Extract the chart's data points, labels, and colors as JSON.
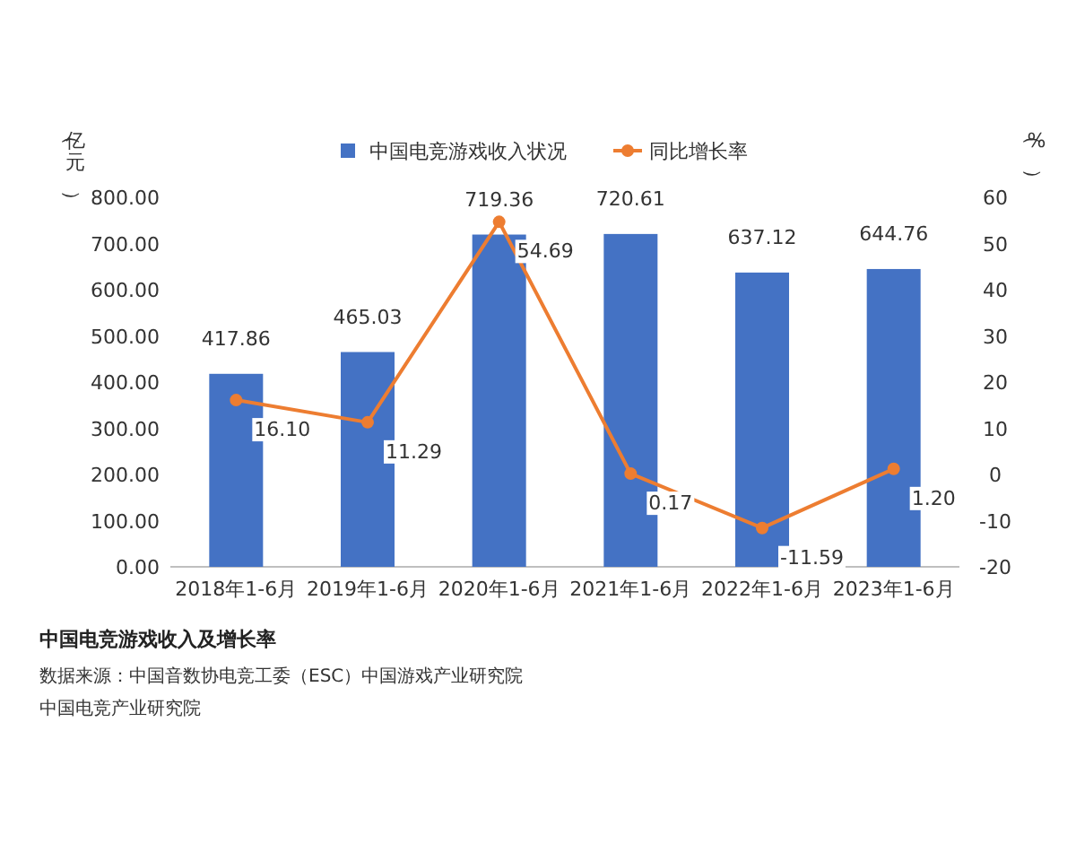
{
  "chart_data": {
    "type": "bar",
    "title": "中国电竞游戏收入及增长率",
    "ylabel": "（亿元）",
    "y2label": "（%）",
    "legend": "top",
    "annotations": [
      "数据来源：中国音数协电竞工委（ESC）中国游戏产业研究院",
      "中国电竞产业研究院"
    ],
    "categories": [
      "2018年1-6月",
      "2019年1-6月",
      "2020年1-6月",
      "2021年1-6月",
      "2022年1-6月",
      "2023年1-6月"
    ],
    "series": [
      {
        "name": "中国电竞游戏收入状况",
        "color": "#4472c4",
        "values": [
          417.86,
          465.03,
          719.36,
          720.61,
          637.12,
          644.76
        ],
        "value_labels": [
          "417.86",
          "465.03",
          "719.36",
          "720.61",
          "637.12",
          "644.76"
        ]
      },
      {
        "name": "同比增长率",
        "type": "line",
        "axis": "y2",
        "marker": "circle",
        "color": "#ed7d31",
        "values": [
          16.1,
          11.29,
          54.69,
          0.17,
          -11.59,
          1.2
        ],
        "value_labels": [
          "16.10",
          "11.29",
          "54.69",
          "0.17",
          "-11.59",
          "1.20"
        ]
      }
    ],
    "ylim": [
      0,
      800
    ],
    "yticks": [
      {
        "value": 0,
        "label": "0.00"
      },
      {
        "value": 100,
        "label": "100.00"
      },
      {
        "value": 200,
        "label": "200.00"
      },
      {
        "value": 300,
        "label": "300.00"
      },
      {
        "value": 400,
        "label": "400.00"
      },
      {
        "value": 500,
        "label": "500.00"
      },
      {
        "value": 600,
        "label": "600.00"
      },
      {
        "value": 700,
        "label": "700.00"
      },
      {
        "value": 800,
        "label": "800.00"
      }
    ],
    "y2lim": [
      -20,
      60
    ],
    "y2ticks": [
      -20,
      -10,
      0,
      10,
      20,
      30,
      40,
      50,
      60
    ]
  }
}
